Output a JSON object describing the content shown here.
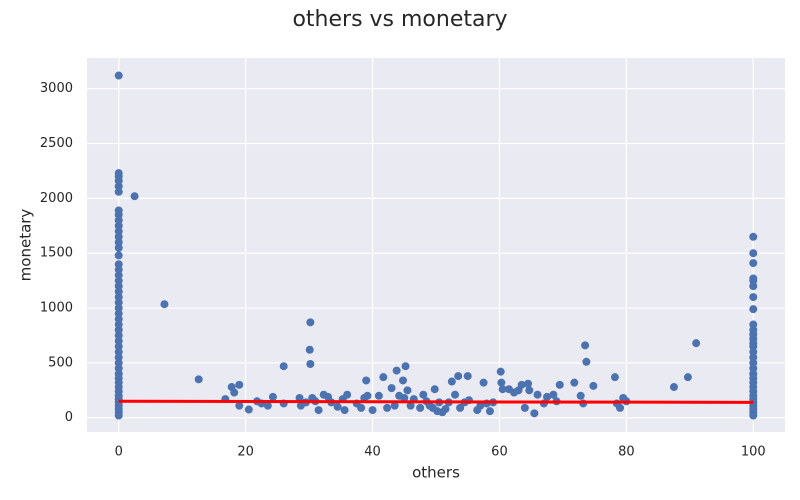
{
  "chart_data": {
    "type": "scatter",
    "title": "others vs monetary",
    "x_label": "others",
    "y_label": "monetary",
    "xlim": [
      -5,
      105
    ],
    "ylim": [
      -130,
      3280
    ],
    "xticks": [
      0,
      20,
      40,
      60,
      80,
      100
    ],
    "yticks": [
      0,
      500,
      1000,
      1500,
      2000,
      2500,
      3000
    ],
    "grid": true,
    "color": "#4c72b0",
    "x": [
      0,
      0,
      0,
      0,
      0,
      0,
      0,
      0,
      0,
      0,
      0,
      0,
      0,
      0,
      0,
      0,
      0,
      0,
      0,
      0,
      0,
      0,
      0,
      0,
      0,
      0,
      0,
      0,
      0,
      0,
      0,
      0,
      0,
      0,
      0,
      0,
      0,
      0,
      0,
      0,
      0,
      0,
      0,
      0,
      0,
      0,
      0,
      2.5,
      7.2,
      12.6,
      16.8,
      17.8,
      18.2,
      19,
      19,
      20.5,
      21.8,
      22.5,
      23.5,
      24.3,
      26,
      26,
      28.5,
      28.7,
      29.5,
      30.2,
      30.1,
      30.2,
      30.5,
      31,
      31.5,
      32.3,
      33,
      33.5,
      34.5,
      35.3,
      35.6,
      36,
      37.5,
      38.2,
      38.7,
      39,
      39.2,
      40,
      41,
      41.7,
      42.3,
      43,
      43.5,
      43.8,
      44.2,
      44.8,
      45,
      45.2,
      45.5,
      46,
      46.5,
      47.5,
      48,
      48.5,
      49,
      49.5,
      49.8,
      50.2,
      50.5,
      51,
      51.5,
      52,
      52.5,
      53,
      53.5,
      53.8,
      54.5,
      55,
      55.2,
      56.5,
      57,
      57.5,
      58,
      58.5,
      59,
      60.2,
      60.3,
      60.5,
      61.5,
      62.3,
      63,
      63.5,
      64,
      64.5,
      64.7,
      65.5,
      66,
      67,
      67.5,
      68.5,
      69,
      69.5,
      71.8,
      72.8,
      73.2,
      73.5,
      73.7,
      74.8,
      78.2,
      78.5,
      79,
      79.5,
      80,
      87.5,
      89.7,
      91,
      100,
      100,
      100,
      100,
      100,
      100,
      100,
      100,
      100,
      100,
      100,
      100,
      100,
      100,
      100,
      100,
      100,
      100,
      100,
      100,
      100,
      100,
      100,
      100,
      100,
      100,
      100,
      100,
      100,
      100
    ],
    "values": [
      20,
      50,
      80,
      110,
      140,
      170,
      200,
      240,
      280,
      320,
      360,
      400,
      450,
      500,
      550,
      600,
      650,
      700,
      750,
      800,
      850,
      900,
      950,
      1000,
      1050,
      1100,
      1150,
      1200,
      1250,
      1300,
      1350,
      1400,
      1480,
      1550,
      1600,
      1650,
      1700,
      1750,
      1800,
      1850,
      1890,
      2060,
      2110,
      2160,
      2200,
      2230,
      3120,
      2020,
      1035,
      350,
      170,
      280,
      230,
      300,
      110,
      75,
      150,
      130,
      110,
      190,
      470,
      130,
      180,
      110,
      140,
      870,
      620,
      490,
      180,
      150,
      70,
      210,
      190,
      140,
      100,
      170,
      70,
      210,
      130,
      90,
      180,
      340,
      200,
      70,
      200,
      370,
      90,
      270,
      110,
      430,
      200,
      340,
      180,
      470,
      250,
      110,
      170,
      90,
      210,
      150,
      110,
      90,
      260,
      60,
      140,
      50,
      80,
      140,
      330,
      210,
      380,
      90,
      140,
      380,
      160,
      70,
      110,
      320,
      130,
      60,
      140,
      420,
      320,
      260,
      260,
      230,
      250,
      300,
      90,
      310,
      250,
      40,
      210,
      130,
      190,
      210,
      150,
      300,
      320,
      200,
      130,
      660,
      510,
      290,
      370,
      130,
      90,
      180,
      150,
      280,
      370,
      680,
      20,
      50,
      80,
      110,
      140,
      170,
      200,
      240,
      280,
      320,
      360,
      400,
      450,
      500,
      550,
      600,
      650,
      680,
      720,
      760,
      800,
      850,
      990,
      1100,
      1200,
      1250,
      1270,
      1410,
      1500,
      1650
    ],
    "regression": {
      "x": [
        0,
        100
      ],
      "values": [
        150,
        140
      ],
      "color": "#ff0000"
    }
  }
}
